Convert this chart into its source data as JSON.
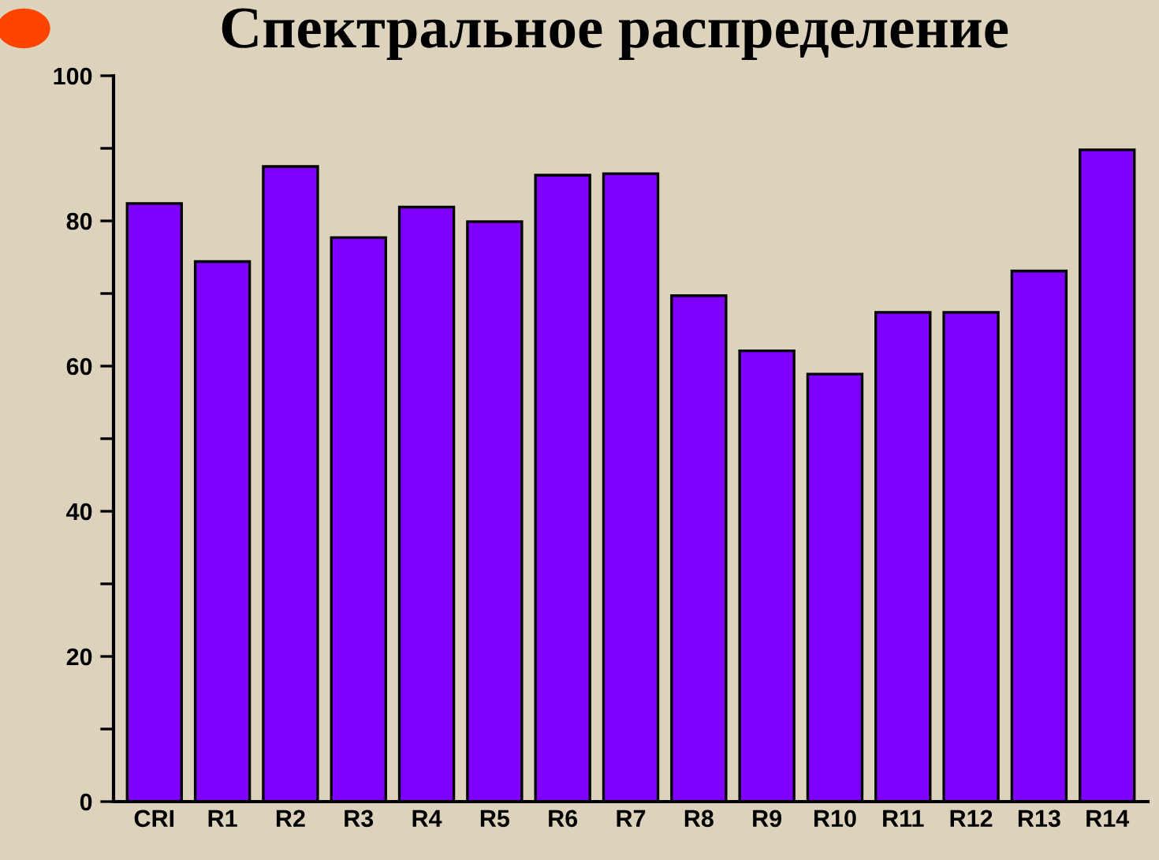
{
  "chart_data": {
    "type": "bar",
    "title": "Спектральное распределение",
    "categories": [
      "CRI",
      "R1",
      "R2",
      "R3",
      "R4",
      "R5",
      "R6",
      "R7",
      "R8",
      "R9",
      "R10",
      "R11",
      "R12",
      "R13",
      "R14"
    ],
    "values": [
      82.4,
      74.4,
      87.5,
      77.7,
      81.9,
      79.9,
      86.3,
      86.5,
      69.7,
      62.1,
      58.9,
      67.4,
      67.4,
      73.1,
      89.8
    ],
    "color": "#7f00ff",
    "ylim": [
      0,
      100
    ],
    "yticks": [
      0,
      {
        "value": 10,
        "label": null
      },
      20,
      {
        "value": 30,
        "label": null
      },
      40,
      {
        "value": 50,
        "label": null
      },
      60,
      {
        "value": 70,
        "label": null
      },
      80,
      {
        "value": 90,
        "label": null
      },
      100
    ],
    "grid": false
  }
}
